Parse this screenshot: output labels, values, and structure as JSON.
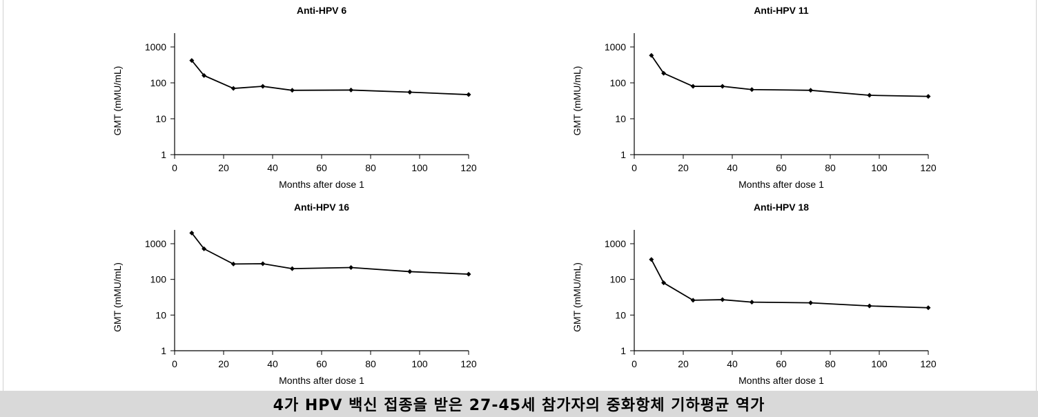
{
  "caption": "4가 HPV 백신 접종을 받은 27-45세 참가자의 중화항체 기하평균 역가",
  "chart_data": [
    {
      "type": "line",
      "title": "Anti-HPV 6",
      "xlabel": "Months after dose 1",
      "ylabel": "GMT (mMU/mL)",
      "x_scale": "linear",
      "y_scale": "log",
      "xlim": [
        0,
        120
      ],
      "ylim": [
        1,
        1000
      ],
      "xticks": [
        0,
        20,
        40,
        60,
        80,
        100,
        120
      ],
      "yticks": [
        1,
        10,
        100,
        1000
      ],
      "x": [
        7,
        12,
        24,
        36,
        48,
        72,
        96,
        120
      ],
      "values": [
        420,
        160,
        70,
        80,
        62,
        63,
        55,
        47
      ],
      "grid": false,
      "color": "#000000"
    },
    {
      "type": "line",
      "title": "Anti-HPV 11",
      "xlabel": "Months after dose 1",
      "ylabel": "GMT (mMU/mL)",
      "x_scale": "linear",
      "y_scale": "log",
      "xlim": [
        0,
        120
      ],
      "ylim": [
        1,
        1000
      ],
      "xticks": [
        0,
        20,
        40,
        60,
        80,
        100,
        120
      ],
      "yticks": [
        1,
        10,
        100,
        1000
      ],
      "x": [
        7,
        12,
        24,
        36,
        48,
        72,
        96,
        120
      ],
      "values": [
        580,
        185,
        80,
        80,
        65,
        62,
        45,
        42
      ],
      "grid": false,
      "color": "#000000"
    },
    {
      "type": "line",
      "title": "Anti-HPV 16",
      "xlabel": "Months after dose 1",
      "ylabel": "GMT (mMU/mL)",
      "x_scale": "linear",
      "y_scale": "log",
      "xlim": [
        0,
        120
      ],
      "ylim": [
        1,
        1000
      ],
      "xticks": [
        0,
        20,
        40,
        60,
        80,
        100,
        120
      ],
      "yticks": [
        1,
        10,
        100,
        1000
      ],
      "x": [
        7,
        12,
        24,
        36,
        48,
        72,
        96,
        120
      ],
      "values": [
        2000,
        720,
        270,
        275,
        200,
        215,
        165,
        140
      ],
      "grid": false,
      "color": "#000000"
    },
    {
      "type": "line",
      "title": "Anti-HPV 18",
      "xlabel": "Months after dose 1",
      "ylabel": "GMT (mMU/mL)",
      "x_scale": "linear",
      "y_scale": "log",
      "xlim": [
        0,
        120
      ],
      "ylim": [
        1,
        1000
      ],
      "xticks": [
        0,
        20,
        40,
        60,
        80,
        100,
        120
      ],
      "yticks": [
        1,
        10,
        100,
        1000
      ],
      "x": [
        7,
        12,
        24,
        36,
        48,
        72,
        96,
        120
      ],
      "values": [
        360,
        80,
        26,
        27,
        23,
        22,
        18,
        16
      ],
      "grid": false,
      "color": "#000000"
    }
  ]
}
